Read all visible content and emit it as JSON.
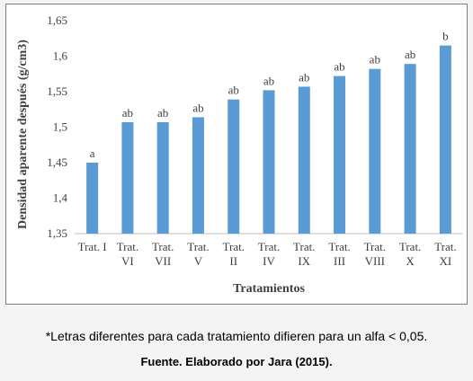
{
  "chart_data": {
    "type": "bar",
    "categories": [
      [
        "Trat. I"
      ],
      [
        "Trat.",
        "VI"
      ],
      [
        "Trat.",
        "VII"
      ],
      [
        "Trat.",
        "V"
      ],
      [
        "Trat.",
        "II"
      ],
      [
        "Trat.",
        "IV"
      ],
      [
        "Trat.",
        "IX"
      ],
      [
        "Trat.",
        "III"
      ],
      [
        "Trat.",
        "VIII"
      ],
      [
        "Trat.",
        "X"
      ],
      [
        "Trat.",
        "XI"
      ]
    ],
    "values": [
      1.45,
      1.507,
      1.507,
      1.514,
      1.539,
      1.552,
      1.557,
      1.572,
      1.582,
      1.589,
      1.615
    ],
    "letters": [
      "a",
      "ab",
      "ab",
      "ab",
      "ab",
      "ab",
      "ab",
      "ab",
      "ab",
      "ab",
      "b"
    ],
    "title": "",
    "xlabel": "Tratamientos",
    "ylabel": "Densidad aparente después (g/cm3)",
    "ylim": [
      1.35,
      1.65
    ],
    "yticks": [
      "1,35",
      "1,4",
      "1,45",
      "1,5",
      "1,55",
      "1,6",
      "1,65"
    ],
    "grid": false,
    "legend": "none",
    "bar_color": "#5b9bd5"
  },
  "notes": {
    "letters_note": "*Letras diferentes para cada tratamiento difieren para un alfa < 0,05.",
    "source": "Fuente. Elaborado por Jara (2015)."
  }
}
